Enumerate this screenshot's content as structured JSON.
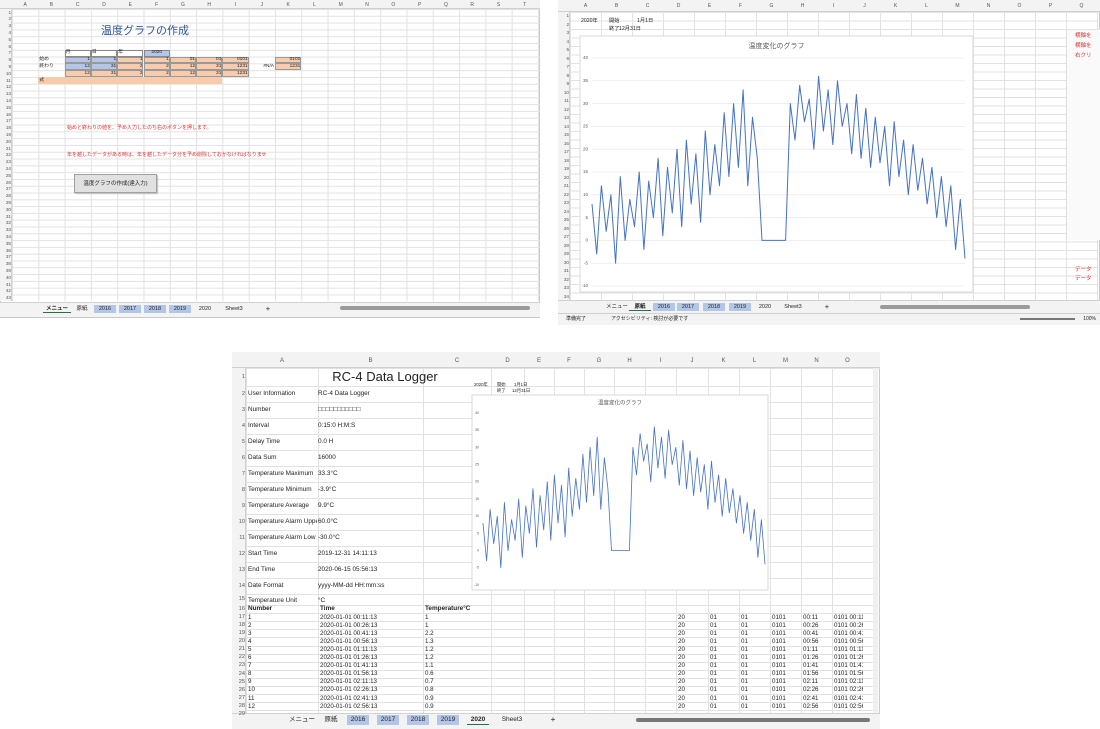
{
  "menu_window": {
    "column_headers": [
      "A",
      "B",
      "C",
      "D",
      "E",
      "F",
      "G",
      "H",
      "I",
      "J",
      "K",
      "L",
      "M",
      "N",
      "O",
      "P",
      "Q",
      "R",
      "S",
      "T"
    ],
    "row_headers": [
      1,
      2,
      3,
      4,
      5,
      6,
      7,
      8,
      9,
      10,
      11,
      12,
      13,
      14,
      15,
      16,
      17,
      18,
      19,
      20,
      21,
      22,
      23,
      24,
      25,
      26,
      27,
      28,
      29,
      30,
      31,
      32,
      33,
      34,
      35,
      36,
      37,
      38,
      39,
      40,
      41,
      42,
      43
    ],
    "title": "温度グラフの作成",
    "table": [
      [
        null,
        "月",
        "日",
        "年",
        "2020"
      ],
      [
        "始め",
        "1",
        "1",
        "1",
        "1",
        "01",
        "01",
        "0101",
        null,
        "0101"
      ],
      [
        "終わり",
        "12",
        "31",
        "2",
        "2",
        "12",
        "31",
        "1231",
        "#N/A",
        "1231"
      ],
      [
        null,
        "12",
        "31",
        "2",
        "2",
        "12",
        "31",
        "1231"
      ],
      [
        "式"
      ]
    ],
    "notes": [
      "始めと終わりの値を、予め入力したのち右のボタンを押します。",
      "年を越したデータがある時は、年を越したデータ分を予め削除しておかなければなりませ"
    ],
    "button": "温度グラフの作成(達入力)",
    "sheet_tabs": [
      "メニュー",
      "原紙",
      "2016",
      "2017",
      "2018",
      "2019",
      "2020",
      "Sheet3"
    ],
    "add_sheet": "+"
  },
  "chart_window": {
    "column_headers": [
      "A",
      "B",
      "C",
      "D",
      "E",
      "F",
      "G",
      "H",
      "I",
      "J",
      "K",
      "L",
      "M",
      "N",
      "O",
      "P",
      "Q",
      "R",
      "S"
    ],
    "row_headers": [
      1,
      2,
      3,
      4,
      5,
      6,
      7,
      8,
      9,
      10,
      11,
      12,
      13,
      14,
      15,
      16,
      17,
      18,
      19,
      20,
      21,
      22,
      23,
      24,
      25,
      26,
      27,
      28,
      29,
      30,
      31,
      32,
      33,
      34
    ],
    "cells": [
      "2020年",
      "開始",
      "1月1日",
      "終了",
      "12月31日"
    ],
    "chart": {
      "type": "line",
      "title": "温度変化のグラフ",
      "color": "#4472c4",
      "ylim": [
        -10,
        40
      ],
      "yticks": [
        -10,
        -5,
        0,
        5,
        10,
        15,
        20,
        25,
        30,
        35,
        40
      ],
      "grid": true,
      "values": [
        8,
        -3,
        12,
        2,
        10,
        -5,
        14,
        0,
        9,
        3,
        15,
        -2,
        13,
        5,
        18,
        1,
        16,
        6,
        20,
        3,
        22,
        8,
        19,
        4,
        24,
        10,
        21,
        12,
        28,
        14,
        30,
        16,
        33,
        12,
        27,
        18,
        0,
        0,
        0,
        0,
        0,
        0,
        30,
        22,
        34,
        26,
        31,
        20,
        36,
        24,
        33,
        21,
        35,
        25,
        30,
        19,
        32,
        18,
        29,
        16,
        27,
        17,
        25,
        12,
        26,
        14,
        22,
        10,
        21,
        11,
        18,
        8,
        16,
        5,
        14,
        3,
        12,
        -2,
        9,
        -4
      ]
    },
    "side_notes": [
      "横軸を",
      "横軸を",
      "右クリ",
      "データ",
      "データ"
    ],
    "sheet_tabs": [
      "メニュー",
      "原紙",
      "2016",
      "2017",
      "2018",
      "2019",
      "2020",
      "Sheet3"
    ],
    "add_sheet": "+",
    "status": "準備完了",
    "accessibility": "アクセシビリティ: 検討が必要です",
    "zoom": "100%"
  },
  "logger_window": {
    "column_headers": [
      "A",
      "B",
      "C",
      "D",
      "E",
      "F",
      "G",
      "H",
      "I",
      "J",
      "K",
      "L",
      "M",
      "N",
      "O"
    ],
    "row_headers": [
      1,
      2,
      3,
      4,
      5,
      6,
      7,
      8,
      9,
      10,
      11,
      12,
      13,
      14,
      15,
      16,
      17,
      18,
      19,
      20,
      21,
      22,
      23,
      24,
      25,
      26,
      27,
      28,
      29
    ],
    "title": "RC-4 Data Logger",
    "info": [
      [
        "User Information",
        "RC-4 Data Logger"
      ],
      [
        "Number",
        "□□□□□□□□□□□"
      ],
      [
        "Interval",
        "0:15:0 H:M:S"
      ],
      [
        "Delay Time",
        "0.0 H"
      ],
      [
        "Data Sum",
        "16000"
      ],
      [
        "Temperature Maximum",
        "33.3°C"
      ],
      [
        "Temperature Minimum",
        "-3.9°C"
      ],
      [
        "Temperature Average",
        "9.9°C"
      ],
      [
        "Temperature Alarm Upper",
        "60.0°C"
      ],
      [
        "Temperature Alarm Low",
        "-30.0°C"
      ],
      [
        "Start Time",
        "2019-12-31 14:11:13"
      ],
      [
        "End Time",
        "2020-06-15 05:56:13"
      ],
      [
        "Date Format",
        "yyyy-MM-dd HH:mm:ss"
      ],
      [
        "Temperature Unit",
        "°C"
      ]
    ],
    "headers": [
      "Number",
      "Time",
      "Temperature°C"
    ],
    "rows": [
      [
        "1",
        "2020-01-01 00:11:13",
        "1",
        "20",
        "01",
        "01",
        "0101",
        "00:11",
        "0101 00:11"
      ],
      [
        "2",
        "2020-01-01 00:26:13",
        "1",
        "20",
        "01",
        "01",
        "0101",
        "00:26",
        "0101 00:26"
      ],
      [
        "3",
        "2020-01-01 00:41:13",
        "2.2",
        "20",
        "01",
        "01",
        "0101",
        "00:41",
        "0101 00:41"
      ],
      [
        "4",
        "2020-01-01 00:56:13",
        "1.3",
        "20",
        "01",
        "01",
        "0101",
        "00:56",
        "0101 00:56"
      ],
      [
        "5",
        "2020-01-01 01:11:13",
        "1.2",
        "20",
        "01",
        "01",
        "0101",
        "01:11",
        "0101 01:11"
      ],
      [
        "6",
        "2020-01-01 01:26:13",
        "1.2",
        "20",
        "01",
        "01",
        "0101",
        "01:26",
        "0101 01:26"
      ],
      [
        "7",
        "2020-01-01 01:41:13",
        "1.1",
        "20",
        "01",
        "01",
        "0101",
        "01:41",
        "0101 01:41"
      ],
      [
        "8",
        "2020-01-01 01:56:13",
        "0.6",
        "20",
        "01",
        "01",
        "0101",
        "01:56",
        "0101 01:56"
      ],
      [
        "9",
        "2020-01-01 02:11:13",
        "0.7",
        "20",
        "01",
        "01",
        "0101",
        "02:11",
        "0101 02:11"
      ],
      [
        "10",
        "2020-01-01 02:26:13",
        "0.8",
        "20",
        "01",
        "01",
        "0101",
        "02:26",
        "0101 02:26"
      ],
      [
        "11",
        "2020-01-01 02:41:13",
        "0.9",
        "20",
        "01",
        "01",
        "0101",
        "02:41",
        "0101 02:41"
      ],
      [
        "12",
        "2020-01-01 02:56:13",
        "0.9",
        "20",
        "01",
        "01",
        "0101",
        "02:56",
        "0101 02:56"
      ]
    ],
    "chart_cells": [
      "2020年",
      "開始",
      "1月1日",
      "終了",
      "12月31日"
    ],
    "chart": {
      "type": "line",
      "title": "温度変化のグラフ",
      "color": "#4472c4",
      "ylim": [
        -10,
        40
      ],
      "yticks": [
        -10,
        -5,
        0,
        5,
        10,
        15,
        20,
        25,
        30,
        35,
        40
      ],
      "grid": false,
      "values": [
        8,
        -3,
        12,
        2,
        10,
        -5,
        14,
        0,
        9,
        3,
        15,
        -2,
        13,
        5,
        18,
        1,
        16,
        6,
        20,
        3,
        22,
        8,
        19,
        4,
        24,
        10,
        21,
        12,
        28,
        14,
        30,
        16,
        33,
        12,
        27,
        18,
        0,
        0,
        0,
        0,
        0,
        0,
        30,
        22,
        34,
        26,
        31,
        20,
        36,
        24,
        33,
        21,
        35,
        25,
        30,
        19,
        32,
        18,
        29,
        16,
        27,
        17,
        25,
        12,
        26,
        14,
        22,
        10,
        21,
        11,
        18,
        8,
        16,
        5,
        14,
        3,
        12,
        -2,
        9,
        -4
      ]
    },
    "sheet_tabs": [
      "メニュー",
      "原紙",
      "2016",
      "2017",
      "2018",
      "2019",
      "2020",
      "Sheet3"
    ],
    "add_sheet": "+"
  }
}
